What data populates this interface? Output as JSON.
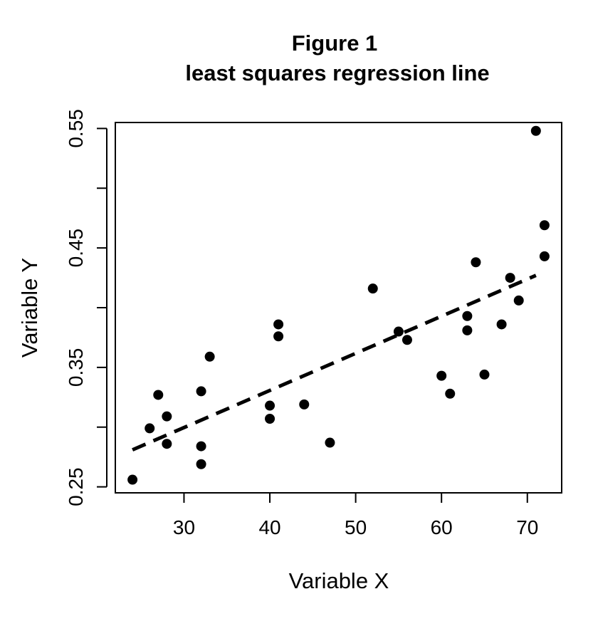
{
  "chart_data": {
    "type": "scatter",
    "title": "Figure 1",
    "subtitle": "least squares regression line",
    "xlabel": "Variable X",
    "ylabel": "Variable Y",
    "xlim": [
      22,
      74
    ],
    "ylim": [
      0.245,
      0.555
    ],
    "x_ticks": [
      30,
      40,
      50,
      60,
      70
    ],
    "x_tick_labels": [
      "30",
      "40",
      "50",
      "60",
      "70"
    ],
    "y_ticks": [
      0.25,
      0.3,
      0.35,
      0.4,
      0.45,
      0.5,
      0.55
    ],
    "y_tick_labels": [
      "0.25",
      "",
      "0.35",
      "",
      "0.45",
      "",
      "0.55"
    ],
    "grid": false,
    "points": [
      {
        "x": 24,
        "y": 0.256
      },
      {
        "x": 26,
        "y": 0.299
      },
      {
        "x": 27,
        "y": 0.327
      },
      {
        "x": 28,
        "y": 0.309
      },
      {
        "x": 28,
        "y": 0.286
      },
      {
        "x": 32,
        "y": 0.33
      },
      {
        "x": 32,
        "y": 0.284
      },
      {
        "x": 32,
        "y": 0.269
      },
      {
        "x": 33,
        "y": 0.359
      },
      {
        "x": 40,
        "y": 0.318
      },
      {
        "x": 40,
        "y": 0.307
      },
      {
        "x": 41,
        "y": 0.386
      },
      {
        "x": 41,
        "y": 0.376
      },
      {
        "x": 44,
        "y": 0.319
      },
      {
        "x": 47,
        "y": 0.287
      },
      {
        "x": 52,
        "y": 0.416
      },
      {
        "x": 55,
        "y": 0.38
      },
      {
        "x": 56,
        "y": 0.373
      },
      {
        "x": 60,
        "y": 0.343
      },
      {
        "x": 61,
        "y": 0.328
      },
      {
        "x": 63,
        "y": 0.393
      },
      {
        "x": 63,
        "y": 0.381
      },
      {
        "x": 64,
        "y": 0.438
      },
      {
        "x": 65,
        "y": 0.344
      },
      {
        "x": 67,
        "y": 0.386
      },
      {
        "x": 68,
        "y": 0.425
      },
      {
        "x": 69,
        "y": 0.406
      },
      {
        "x": 71,
        "y": 0.548
      },
      {
        "x": 72,
        "y": 0.469
      },
      {
        "x": 72,
        "y": 0.443
      }
    ],
    "regression_line": {
      "x": [
        24,
        71
      ],
      "y": [
        0.281,
        0.427
      ],
      "style": "dashed"
    },
    "colors": {
      "points": "#000000",
      "line": "#000000",
      "frame": "#000000"
    }
  }
}
